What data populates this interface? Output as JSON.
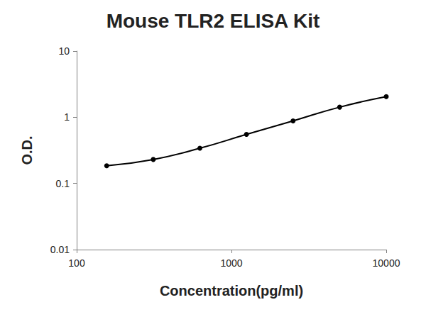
{
  "chart_data": {
    "type": "line",
    "title": "Mouse TLR2 ELISA Kit",
    "x_label": "Concentration(pg/ml)",
    "y_label": "O.D.",
    "x": [
      156.25,
      312.5,
      625,
      1250,
      2500,
      5000,
      10000
    ],
    "values": [
      0.185,
      0.23,
      0.34,
      0.55,
      0.88,
      1.42,
      2.05
    ],
    "color": "#000000",
    "marker": "circle",
    "line_style": "solid",
    "log": true,
    "grid": false,
    "xlim": [
      100,
      10000
    ],
    "xticks": [
      100,
      1000,
      10000
    ],
    "ylim": [
      0.01,
      10
    ],
    "yticks": [
      0.01,
      0.1,
      1,
      10
    ]
  }
}
